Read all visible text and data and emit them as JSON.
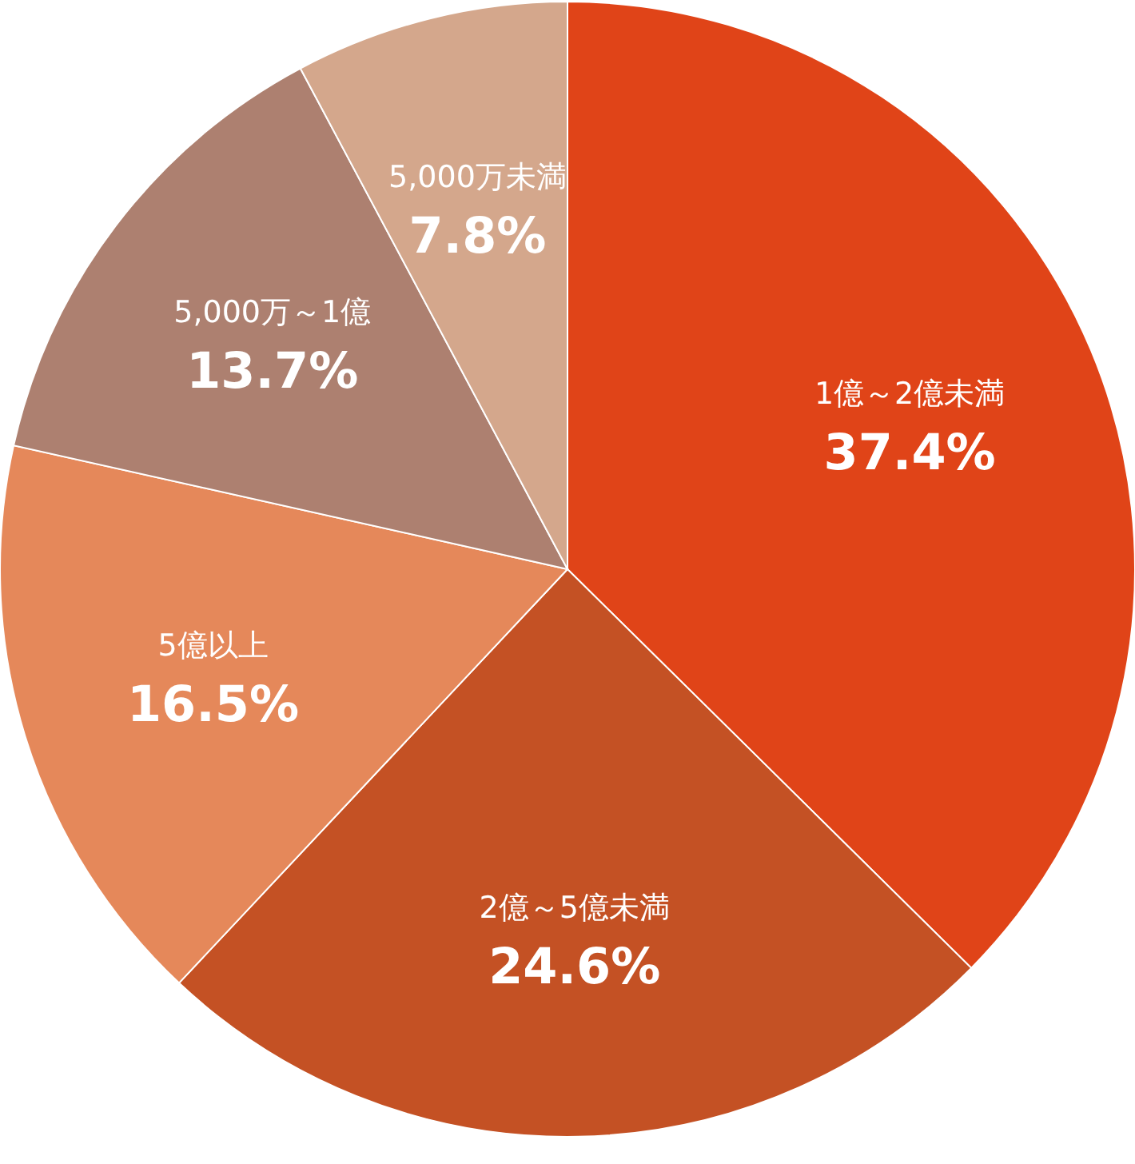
{
  "chart_data": {
    "type": "pie",
    "categories": [
      "1億～2億未満",
      "2億～5億未満",
      "5億以上",
      "5,000万～1億",
      "5,000万未満"
    ],
    "values": [
      37.4,
      24.6,
      16.5,
      13.7,
      7.8
    ],
    "value_labels": [
      "37.4%",
      "24.6%",
      "16.5%",
      "13.7%",
      "7.8%"
    ],
    "colors": [
      "#e04418",
      "#c45124",
      "#e5885a",
      "#ad8070",
      "#d4a78c"
    ]
  }
}
